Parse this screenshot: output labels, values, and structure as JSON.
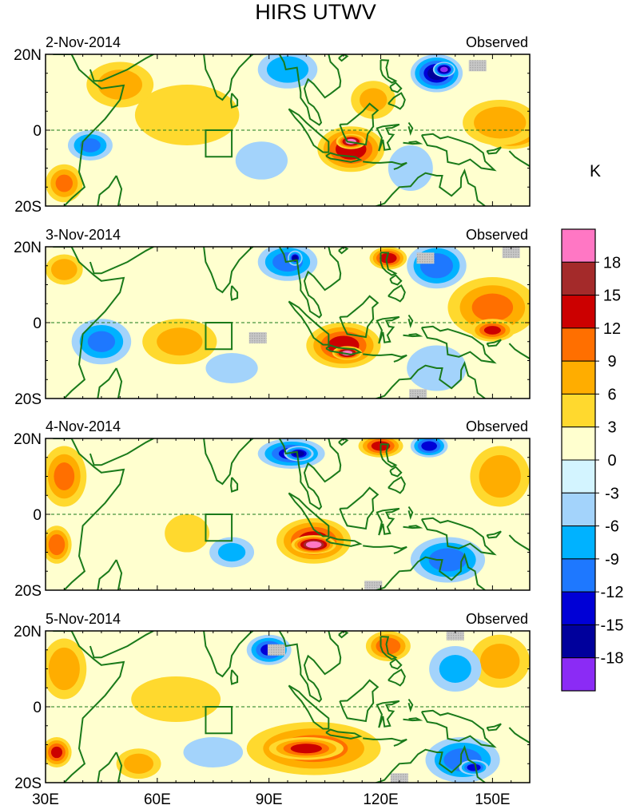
{
  "chart_data": {
    "type": "heatmap",
    "title": "HIRS UTWV",
    "units": "K",
    "x_axis": {
      "range": [
        30,
        160
      ],
      "ticks": [
        30,
        60,
        90,
        120,
        150
      ],
      "tick_labels": [
        "30E",
        "60E",
        "90E",
        "120E",
        "150E"
      ]
    },
    "y_axis": {
      "range": [
        -20,
        20
      ],
      "ticks": [
        20,
        0,
        -20
      ],
      "tick_labels": [
        "20N",
        "0",
        "20S"
      ]
    },
    "colorbar": {
      "labels": [
        "18",
        "15",
        "12",
        "9",
        "6",
        "3",
        "0",
        "-3",
        "-6",
        "-9",
        "-12",
        "-15",
        "-18"
      ],
      "colors": [
        "#ff77c4",
        "#a42a2a",
        "#cc0000",
        "#ff6f00",
        "#ffad00",
        "#ffd92e",
        "#ffffcf",
        "#d3f4ff",
        "#a3d3fb",
        "#00b2ff",
        "#1e78ff",
        "#0000d6",
        "#00009c",
        "#8b2bf5"
      ]
    },
    "box": {
      "lon": [
        73,
        80
      ],
      "lat": [
        -7,
        0
      ]
    },
    "panels": [
      {
        "date": "2-Nov-2014",
        "label": "Observed",
        "blobs": [
          {
            "lon": 112,
            "lat": -5,
            "rx": 9,
            "ry": 6,
            "v": 14
          },
          {
            "lon": 112,
            "lat": -3,
            "rx": 4,
            "ry": 2,
            "v": 18
          },
          {
            "lon": 155,
            "lat": -1,
            "rx": 8,
            "ry": 4,
            "v": 12
          },
          {
            "lon": 152,
            "lat": 2,
            "rx": 10,
            "ry": 6,
            "v": 8
          },
          {
            "lon": 68,
            "lat": 4,
            "rx": 14,
            "ry": 8,
            "v": 5
          },
          {
            "lon": 50,
            "lat": 12,
            "rx": 9,
            "ry": 6,
            "v": 7
          },
          {
            "lon": 118,
            "lat": 8,
            "rx": 6,
            "ry": 5,
            "v": 6
          },
          {
            "lon": 135,
            "lat": 15,
            "rx": 7,
            "ry": 5,
            "v": -15
          },
          {
            "lon": 137,
            "lat": 16,
            "rx": 3,
            "ry": 2,
            "v": -19
          },
          {
            "lon": 95,
            "lat": 16,
            "rx": 8,
            "ry": 5,
            "v": -8
          },
          {
            "lon": 42,
            "lat": -4,
            "rx": 6,
            "ry": 4,
            "v": -9
          },
          {
            "lon": 88,
            "lat": -8,
            "rx": 7,
            "ry": 5,
            "v": -5
          },
          {
            "lon": 35,
            "lat": -14,
            "rx": 5,
            "ry": 5,
            "v": 9
          },
          {
            "lon": 128,
            "lat": -10,
            "rx": 6,
            "ry": 6,
            "v": -4
          }
        ],
        "missing": [
          {
            "lon": 146,
            "lat": 17
          }
        ]
      },
      {
        "date": "3-Nov-2014",
        "label": "Observed",
        "blobs": [
          {
            "lon": 110,
            "lat": -6,
            "rx": 10,
            "ry": 6,
            "v": 13
          },
          {
            "lon": 111,
            "lat": -8,
            "rx": 4,
            "ry": 1.8,
            "v": 19
          },
          {
            "lon": 150,
            "lat": 4,
            "rx": 12,
            "ry": 8,
            "v": 9
          },
          {
            "lon": 150,
            "lat": -2,
            "rx": 6,
            "ry": 3,
            "v": 12
          },
          {
            "lon": 66,
            "lat": -5,
            "rx": 10,
            "ry": 6,
            "v": 6
          },
          {
            "lon": 122,
            "lat": 17,
            "rx": 5,
            "ry": 3,
            "v": 14
          },
          {
            "lon": 95,
            "lat": 16,
            "rx": 8,
            "ry": 5,
            "v": -10
          },
          {
            "lon": 97,
            "lat": 17,
            "rx": 2,
            "ry": 2,
            "v": -15
          },
          {
            "lon": 135,
            "lat": 15,
            "rx": 8,
            "ry": 6,
            "v": -11
          },
          {
            "lon": 45,
            "lat": -5,
            "rx": 8,
            "ry": 6,
            "v": -9
          },
          {
            "lon": 35,
            "lat": 14,
            "rx": 5,
            "ry": 4,
            "v": 8
          },
          {
            "lon": 135,
            "lat": -12,
            "rx": 8,
            "ry": 6,
            "v": -5
          },
          {
            "lon": 80,
            "lat": -12,
            "rx": 7,
            "ry": 4,
            "v": -4
          }
        ],
        "missing": [
          {
            "lon": 132,
            "lat": 17
          },
          {
            "lon": 87,
            "lat": -4
          },
          {
            "lon": 130,
            "lat": -19
          },
          {
            "lon": 155,
            "lat": 18.5
          }
        ]
      },
      {
        "date": "4-Nov-2014",
        "label": "Observed",
        "blobs": [
          {
            "lon": 102,
            "lat": -7,
            "rx": 10,
            "ry": 6,
            "v": 13
          },
          {
            "lon": 102,
            "lat": -8,
            "rx": 6,
            "ry": 2.5,
            "v": 19
          },
          {
            "lon": 120,
            "lat": 18,
            "rx": 6,
            "ry": 3,
            "v": 13
          },
          {
            "lon": 152,
            "lat": 10,
            "rx": 8,
            "ry": 8,
            "v": 8
          },
          {
            "lon": 35,
            "lat": 10,
            "rx": 6,
            "ry": 8,
            "v": 9
          },
          {
            "lon": 33,
            "lat": -8,
            "rx": 4,
            "ry": 5,
            "v": 11
          },
          {
            "lon": 96,
            "lat": 16,
            "rx": 9,
            "ry": 4,
            "v": -12
          },
          {
            "lon": 98,
            "lat": 16,
            "rx": 4,
            "ry": 2,
            "v": -16
          },
          {
            "lon": 133,
            "lat": 18,
            "rx": 5,
            "ry": 3,
            "v": -13
          },
          {
            "lon": 138,
            "lat": -12,
            "rx": 10,
            "ry": 6,
            "v": -10
          },
          {
            "lon": 68,
            "lat": -5,
            "rx": 6,
            "ry": 5,
            "v": 5
          },
          {
            "lon": 80,
            "lat": -10,
            "rx": 6,
            "ry": 4,
            "v": -6
          }
        ],
        "missing": [
          {
            "lon": 118,
            "lat": -19
          }
        ]
      },
      {
        "date": "5-Nov-2014",
        "label": "Observed",
        "blobs": [
          {
            "lon": 102,
            "lat": -11,
            "rx": 18,
            "ry": 7,
            "v": 10
          },
          {
            "lon": 100,
            "lat": -11,
            "rx": 10,
            "ry": 3,
            "v": 13
          },
          {
            "lon": 122,
            "lat": 16,
            "rx": 6,
            "ry": 4,
            "v": 11
          },
          {
            "lon": 152,
            "lat": 12,
            "rx": 8,
            "ry": 7,
            "v": 7
          },
          {
            "lon": 35,
            "lat": 10,
            "rx": 6,
            "ry": 8,
            "v": 8
          },
          {
            "lon": 33,
            "lat": -12,
            "rx": 4,
            "ry": 4,
            "v": 12
          },
          {
            "lon": 90,
            "lat": 15,
            "rx": 6,
            "ry": 4,
            "v": -12
          },
          {
            "lon": 142,
            "lat": -14,
            "rx": 10,
            "ry": 6,
            "v": -10
          },
          {
            "lon": 145,
            "lat": -16,
            "rx": 4,
            "ry": 2,
            "v": -14
          },
          {
            "lon": 140,
            "lat": 10,
            "rx": 7,
            "ry": 6,
            "v": -6
          },
          {
            "lon": 65,
            "lat": 2,
            "rx": 12,
            "ry": 6,
            "v": 5
          },
          {
            "lon": 55,
            "lat": -15,
            "rx": 6,
            "ry": 4,
            "v": 7
          },
          {
            "lon": 75,
            "lat": -12,
            "rx": 8,
            "ry": 4,
            "v": -5
          }
        ],
        "missing": [
          {
            "lon": 92,
            "lat": 15
          },
          {
            "lon": 140,
            "lat": 19
          },
          {
            "lon": 125,
            "lat": -19
          }
        ]
      }
    ]
  }
}
